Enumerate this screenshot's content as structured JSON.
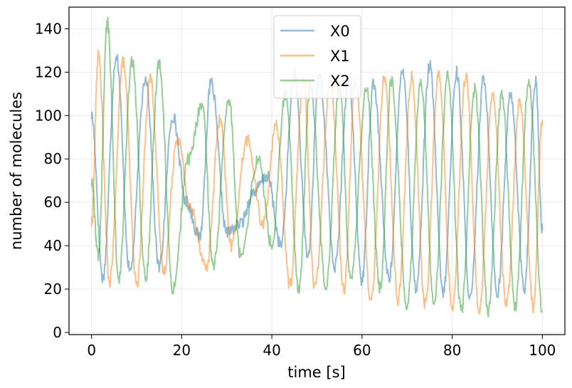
{
  "chart_data": {
    "type": "line",
    "title": "",
    "xlabel": "time [s]",
    "ylabel": "number of molecules",
    "xlim": [
      -5,
      105
    ],
    "ylim": [
      -1,
      150
    ],
    "xticks": [
      0,
      20,
      40,
      60,
      80,
      100
    ],
    "yticks": [
      0,
      20,
      40,
      60,
      80,
      100,
      120,
      140
    ],
    "grid": true,
    "legend_position": "top-center",
    "series": [
      {
        "name": "X0",
        "color": "#1f77b4",
        "x": [
          0,
          2.5,
          5.5,
          8.5,
          12,
          15,
          18,
          21,
          24,
          26.5,
          30,
          33,
          36,
          39,
          42,
          45,
          48,
          50.5,
          54,
          57,
          60,
          62.5,
          66,
          69,
          72,
          75,
          78,
          81,
          84,
          87,
          90,
          93,
          96,
          98.5,
          100
        ],
        "y": [
          100,
          25,
          128,
          28,
          118,
          30,
          100,
          60,
          44,
          115,
          46,
          50,
          65,
          72,
          40,
          119,
          35,
          119,
          30,
          117,
          24,
          115,
          25,
          122,
          20,
          123,
          18,
          120,
          15,
          117,
          18,
          110,
          20,
          116,
          47
        ]
      },
      {
        "name": "X1",
        "color": "#ff7f0e",
        "x": [
          0,
          1.5,
          4,
          7,
          10,
          13,
          16,
          19,
          22,
          25.5,
          28.5,
          31,
          34.5,
          38,
          41,
          44,
          47,
          49.5,
          53,
          56,
          58.5,
          62,
          65,
          68,
          71,
          74,
          77,
          80,
          83,
          86,
          89,
          92,
          95,
          98,
          100
        ],
        "y": [
          50,
          128,
          23,
          125,
          22,
          118,
          28,
          90,
          57,
          30,
          98,
          40,
          89,
          50,
          95,
          22,
          116,
          20,
          117,
          20,
          116,
          15,
          118,
          15,
          118,
          13,
          119,
          11,
          118,
          10,
          109,
          12,
          107,
          12,
          98
        ]
      },
      {
        "name": "X2",
        "color": "#2ca02c",
        "x": [
          0,
          1.5,
          3.5,
          6,
          9,
          12,
          15,
          18,
          21.5,
          24.5,
          27,
          30.5,
          33,
          37,
          40,
          43,
          46,
          48.5,
          52,
          55,
          57.5,
          61,
          64,
          66.5,
          70,
          73,
          76,
          79,
          82,
          85,
          88,
          91,
          94,
          97,
          100
        ],
        "y": [
          70,
          35,
          143,
          25,
          125,
          25,
          125,
          20,
          80,
          105,
          31,
          107,
          36,
          80,
          40,
          110,
          20,
          114,
          22,
          113,
          25,
          113,
          20,
          116,
          12,
          116,
          14,
          118,
          10,
          112,
          10,
          110,
          12,
          116,
          10
        ]
      }
    ]
  }
}
